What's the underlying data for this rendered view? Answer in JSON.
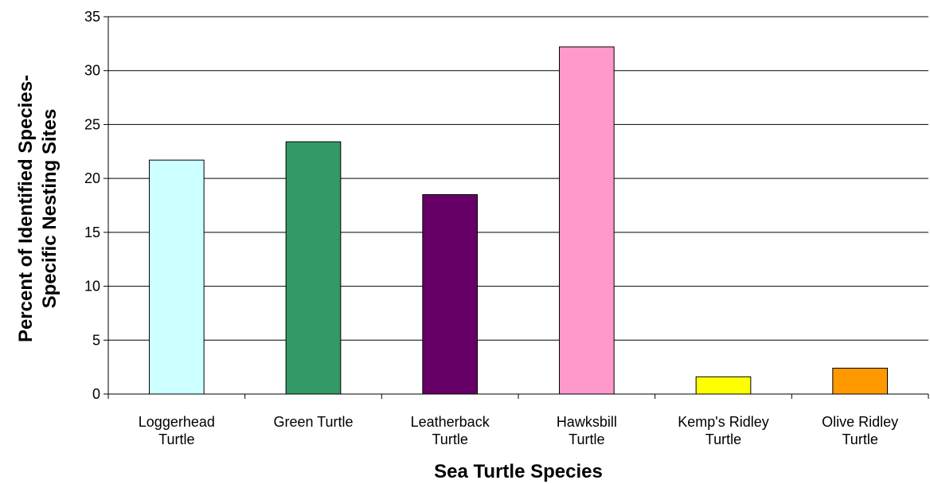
{
  "chart_data": {
    "type": "bar",
    "title": "",
    "xlabel": "Sea Turtle Species",
    "ylabel": [
      "Percent of Identified Species-",
      "Specific Nesting Sites"
    ],
    "categories": [
      [
        "Loggerhead",
        "Turtle"
      ],
      [
        "Green Turtle"
      ],
      [
        "Leatherback",
        "Turtle"
      ],
      [
        "Hawksbill",
        "Turtle"
      ],
      [
        "Kemp's Ridley",
        "Turtle"
      ],
      [
        "Olive Ridley",
        "Turtle"
      ]
    ],
    "values": [
      21.7,
      23.4,
      18.5,
      32.2,
      1.6,
      2.4
    ],
    "colors": [
      "#ccffff",
      "#339966",
      "#660066",
      "#ff99cc",
      "#ffff00",
      "#ff9900"
    ],
    "ylim": [
      0,
      35
    ],
    "yticks": [
      0,
      5,
      10,
      15,
      20,
      25,
      30,
      35
    ],
    "grid": true,
    "legend": "none"
  }
}
